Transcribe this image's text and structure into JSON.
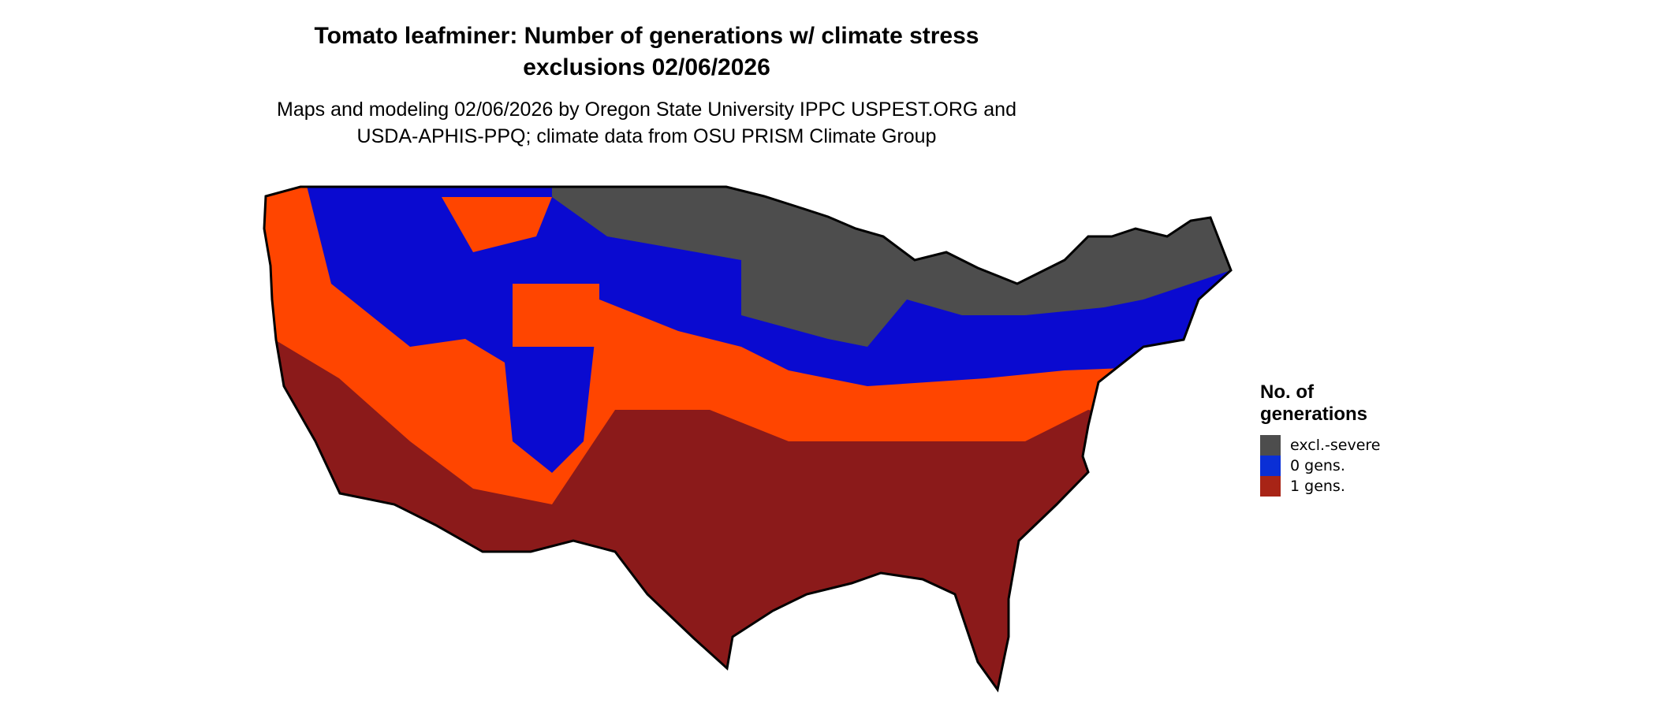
{
  "title": "Tomato leafminer: Number of generations w/ climate stress",
  "title_line2": "exclusions 02/06/2026",
  "subtitle": "Maps and modeling 02/06/2026 by Oregon State University IPPC USPEST.ORG and",
  "subtitle_line2": "USDA-APHIS-PPQ; climate data from OSU PRISM Climate Group",
  "legend": {
    "title_line1": "No. of",
    "title_line2": "generations",
    "items": [
      {
        "label": "excl.-severe",
        "color": "#4d4d4d"
      },
      {
        "label": "0 gens.",
        "color": "#0a2fd6"
      },
      {
        "label": "1 gens.",
        "color": "#a82416"
      }
    ]
  },
  "map_colors": {
    "excluded": "#4d4d4d",
    "zero": "#0a0ad0",
    "transition": "#ff4500",
    "one": "#8b1a1a",
    "border": "#000000"
  }
}
